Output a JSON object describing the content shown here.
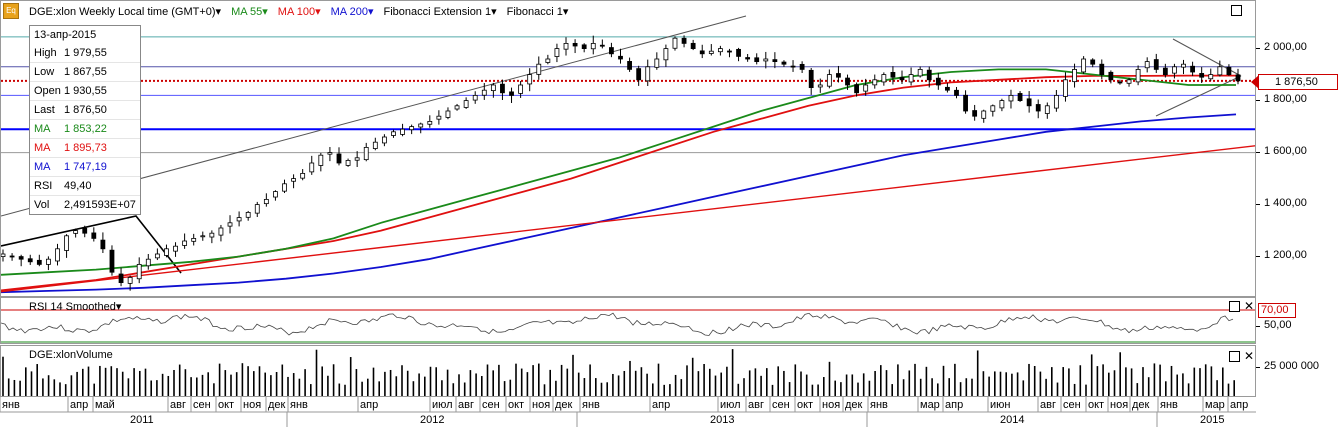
{
  "toolbar": {
    "logo": "Eq",
    "instrument": "DGE:xlon Weekly Local time (GMT+0)",
    "ma55": "MA 55",
    "ma100": "MA 100",
    "ma200": "MA 200",
    "fib_ext": "Fibonacci Extension 1",
    "fib": "Fibonacci 1"
  },
  "colors": {
    "ma55": "#1a8a1a",
    "ma100": "#e01010",
    "ma200": "#1010d0",
    "up": "#000000",
    "down": "#000000"
  },
  "infobox": {
    "date": "13-апр-2015",
    "rows": [
      {
        "k": "High",
        "v": "1 979,55"
      },
      {
        "k": "Low",
        "v": "1 867,55"
      },
      {
        "k": "Open",
        "v": "1 930,55"
      },
      {
        "k": "Last",
        "v": "1 876,50"
      },
      {
        "k": "MA",
        "v": "1 853,22"
      },
      {
        "k": "MA",
        "v": "1 895,73"
      },
      {
        "k": "MA",
        "v": "1 747,19"
      },
      {
        "k": "RSI",
        "v": "49,40"
      },
      {
        "k": "Vol",
        "v": "2,491593E+07"
      }
    ]
  },
  "price_axis": {
    "ticks": [
      "2 000,00",
      "1 800,00",
      "1 600,00",
      "1 400,00",
      "1 200,00"
    ],
    "last_tag": "1 876,50"
  },
  "rsi_pane": {
    "title": "RSI 14 Smoothed",
    "level_tag": "70,00",
    "ticks": [
      "50,00"
    ]
  },
  "volume_pane": {
    "title": "DGE:xlonVolume",
    "ticks": [
      "25 000 000"
    ]
  },
  "time_axis": {
    "months": [
      "янв",
      "апр",
      "май",
      "авг",
      "сен",
      "окт",
      "ноя",
      "дек",
      "янв",
      "апр",
      "июл",
      "авг",
      "сен",
      "окт",
      "ноя",
      "дек",
      "янв",
      "апр",
      "июл",
      "авг",
      "сен",
      "окт",
      "ноя",
      "дек",
      "янв",
      "мар",
      "апр",
      "июн",
      "авг",
      "сен",
      "окт",
      "ноя",
      "дек",
      "янв",
      "мар",
      "апр"
    ],
    "years": [
      "2011",
      "2012",
      "2013",
      "2014",
      "2015"
    ]
  },
  "chart_data": {
    "type": "candlestick",
    "ylim": [
      1060,
      2160
    ],
    "approx_weekly_close_path": [
      1210,
      1200,
      1190,
      1180,
      1170,
      1190,
      1230,
      1280,
      1300,
      1290,
      1270,
      1230,
      1140,
      1100,
      1120,
      1170,
      1190,
      1210,
      1230,
      1240,
      1260,
      1270,
      1280,
      1290,
      1310,
      1330,
      1350,
      1370,
      1400,
      1420,
      1450,
      1480,
      1500,
      1520,
      1560,
      1590,
      1600,
      1560,
      1570,
      1580,
      1620,
      1640,
      1660,
      1680,
      1690,
      1700,
      1710,
      1720,
      1740,
      1760,
      1780,
      1800,
      1820,
      1840,
      1860,
      1830,
      1820,
      1860,
      1900,
      1940,
      1960,
      2000,
      2020,
      2010,
      2000,
      2020,
      2010,
      1980,
      1960,
      1920,
      1880,
      1930,
      1960,
      2000,
      2040,
      2020,
      2000,
      1980,
      1990,
      2000,
      1990,
      1970,
      1960,
      1950,
      1960,
      1950,
      1940,
      1930,
      1920,
      1850,
      1860,
      1900,
      1890,
      1860,
      1830,
      1860,
      1880,
      1900,
      1890,
      1880,
      1900,
      1920,
      1880,
      1860,
      1840,
      1820,
      1760,
      1740,
      1760,
      1780,
      1800,
      1820,
      1800,
      1780,
      1760,
      1780,
      1820,
      1880,
      1920,
      1960,
      1940,
      1900,
      1880,
      1870,
      1880,
      1920,
      1950,
      1920,
      1900,
      1930,
      1940,
      1910,
      1890,
      1900,
      1930,
      1900,
      1876
    ],
    "ma55_path": [
      1130,
      1140,
      1150,
      1165,
      1180,
      1200,
      1230,
      1270,
      1330,
      1380,
      1430,
      1480,
      1530,
      1580,
      1640,
      1700,
      1760,
      1810,
      1860,
      1890,
      1910,
      1920,
      1920,
      1900,
      1880,
      1860,
      1860
    ],
    "ma100_path": [
      1070,
      1090,
      1110,
      1140,
      1170,
      1200,
      1230,
      1260,
      1300,
      1350,
      1400,
      1450,
      1500,
      1560,
      1620,
      1680,
      1730,
      1780,
      1820,
      1850,
      1870,
      1880,
      1890,
      1895,
      1895,
      1896,
      1896
    ],
    "ma200_path": [
      1063,
      1068,
      1073,
      1080,
      1090,
      1100,
      1115,
      1135,
      1160,
      1190,
      1230,
      1270,
      1310,
      1350,
      1390,
      1430,
      1470,
      1510,
      1550,
      1590,
      1620,
      1650,
      1680,
      1700,
      1720,
      1735,
      1747
    ],
    "hlines": [
      2045,
      1930,
      1876,
      1820,
      1690,
      1600
    ]
  }
}
